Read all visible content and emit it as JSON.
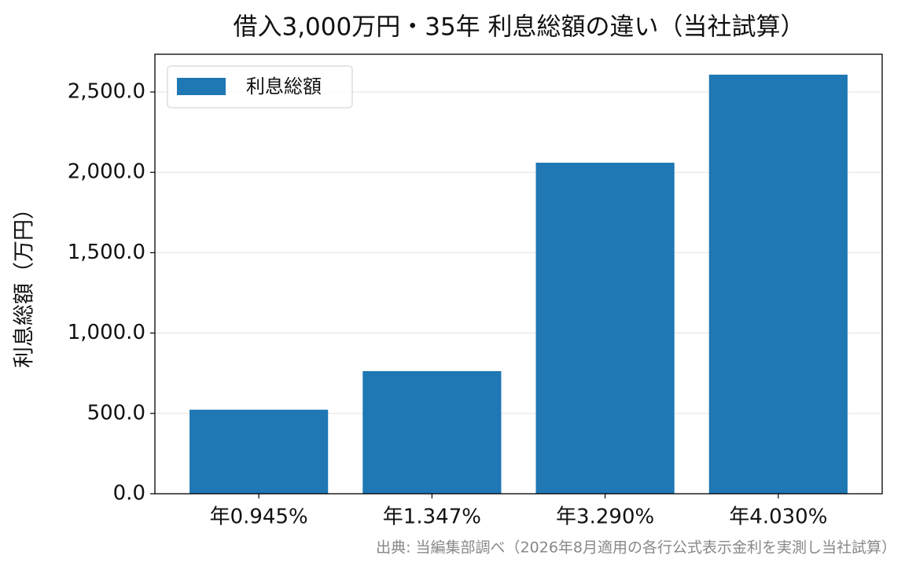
{
  "chart_data": {
    "type": "bar",
    "title": "借入3,000万円・35年 利息総額の違い（当社試算）",
    "ylabel": "利息総額（万円）",
    "source": "出典: 当編集部調べ（2026年8月適用の各行公式表示金利を実測し当社試算）",
    "categories": [
      "年0.945%",
      "年1.347%",
      "年3.290%",
      "年4.030%"
    ],
    "series": [
      {
        "name": "利息総額",
        "color": "#1f77b4",
        "values": [
          523,
          763,
          2060,
          2608
        ]
      }
    ],
    "ylim": [
      0,
      2735
    ],
    "yticks": [
      {
        "value": 0,
        "label": "0.0"
      },
      {
        "value": 500,
        "label": "500.0"
      },
      {
        "value": 1000,
        "label": "1,000.0"
      },
      {
        "value": 1500,
        "label": "1,500.0"
      },
      {
        "value": 2000,
        "label": "2,000.0"
      },
      {
        "value": 2500,
        "label": "2,500.0"
      }
    ],
    "grid": true,
    "legend": "upper left"
  }
}
